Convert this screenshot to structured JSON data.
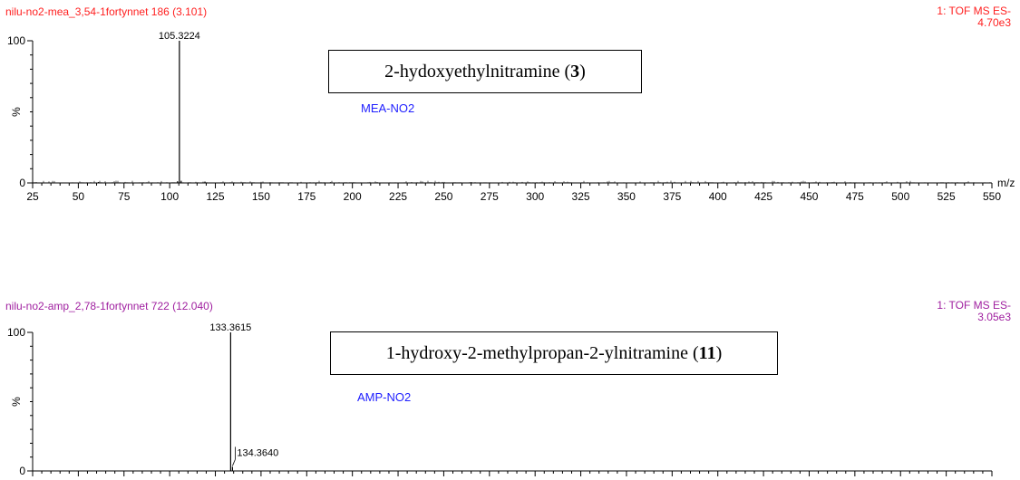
{
  "chart_data": [
    {
      "type": "bar",
      "spectrum_header": "nilu-no2-mea_3,54-1fortynnet 186 (3.101)",
      "ms_mode": "1: TOF MS ES-",
      "base_peak_intensity": "4.70e3",
      "header_color": "#ff2020",
      "ylabel": "%",
      "xlabel": "m/z",
      "ylim": [
        0,
        100
      ],
      "yticks": [
        "0",
        "100"
      ],
      "xlim": [
        25,
        550
      ],
      "xticks": [
        "25",
        "50",
        "75",
        "100",
        "125",
        "150",
        "175",
        "200",
        "225",
        "250",
        "275",
        "300",
        "325",
        "350",
        "375",
        "400",
        "425",
        "450",
        "475",
        "500",
        "525",
        "550"
      ],
      "show_xtick_labels": true,
      "peaks": [
        {
          "mz": 105.3224,
          "intensity": 100,
          "label": "105.3224"
        },
        {
          "mz": 104.3,
          "intensity": 1.2
        },
        {
          "mz": 106.3,
          "intensity": 1.5
        },
        {
          "mz": 119.3,
          "intensity": 0.8
        },
        {
          "mz": 61.0,
          "intensity": 0.6
        },
        {
          "mz": 188.0,
          "intensity": 0.5
        },
        {
          "mz": 265.0,
          "intensity": 0.5
        }
      ],
      "structure_name": "2-hydoxyethylnitramine",
      "structure_number": "3",
      "compound_tag": "MEA-NO2"
    },
    {
      "type": "bar",
      "spectrum_header": "nilu-no2-amp_2,78-1fortynnet 722 (12.040)",
      "ms_mode": "1: TOF MS ES-",
      "base_peak_intensity": "3.05e3",
      "header_color": "#a020a0",
      "ylabel": "%",
      "xlabel": "",
      "ylim": [
        0,
        100
      ],
      "yticks": [
        "0",
        "100"
      ],
      "xlim": [
        25,
        550
      ],
      "xticks": [],
      "show_xtick_labels": false,
      "peaks": [
        {
          "mz": 133.3615,
          "intensity": 100,
          "label": "133.3615"
        },
        {
          "mz": 134.364,
          "intensity": 3,
          "label": "134.3640"
        }
      ],
      "structure_name": "1-hydroxy-2-methylpropan-2-ylnitramine",
      "structure_number": "11",
      "compound_tag": "AMP-NO2"
    }
  ]
}
